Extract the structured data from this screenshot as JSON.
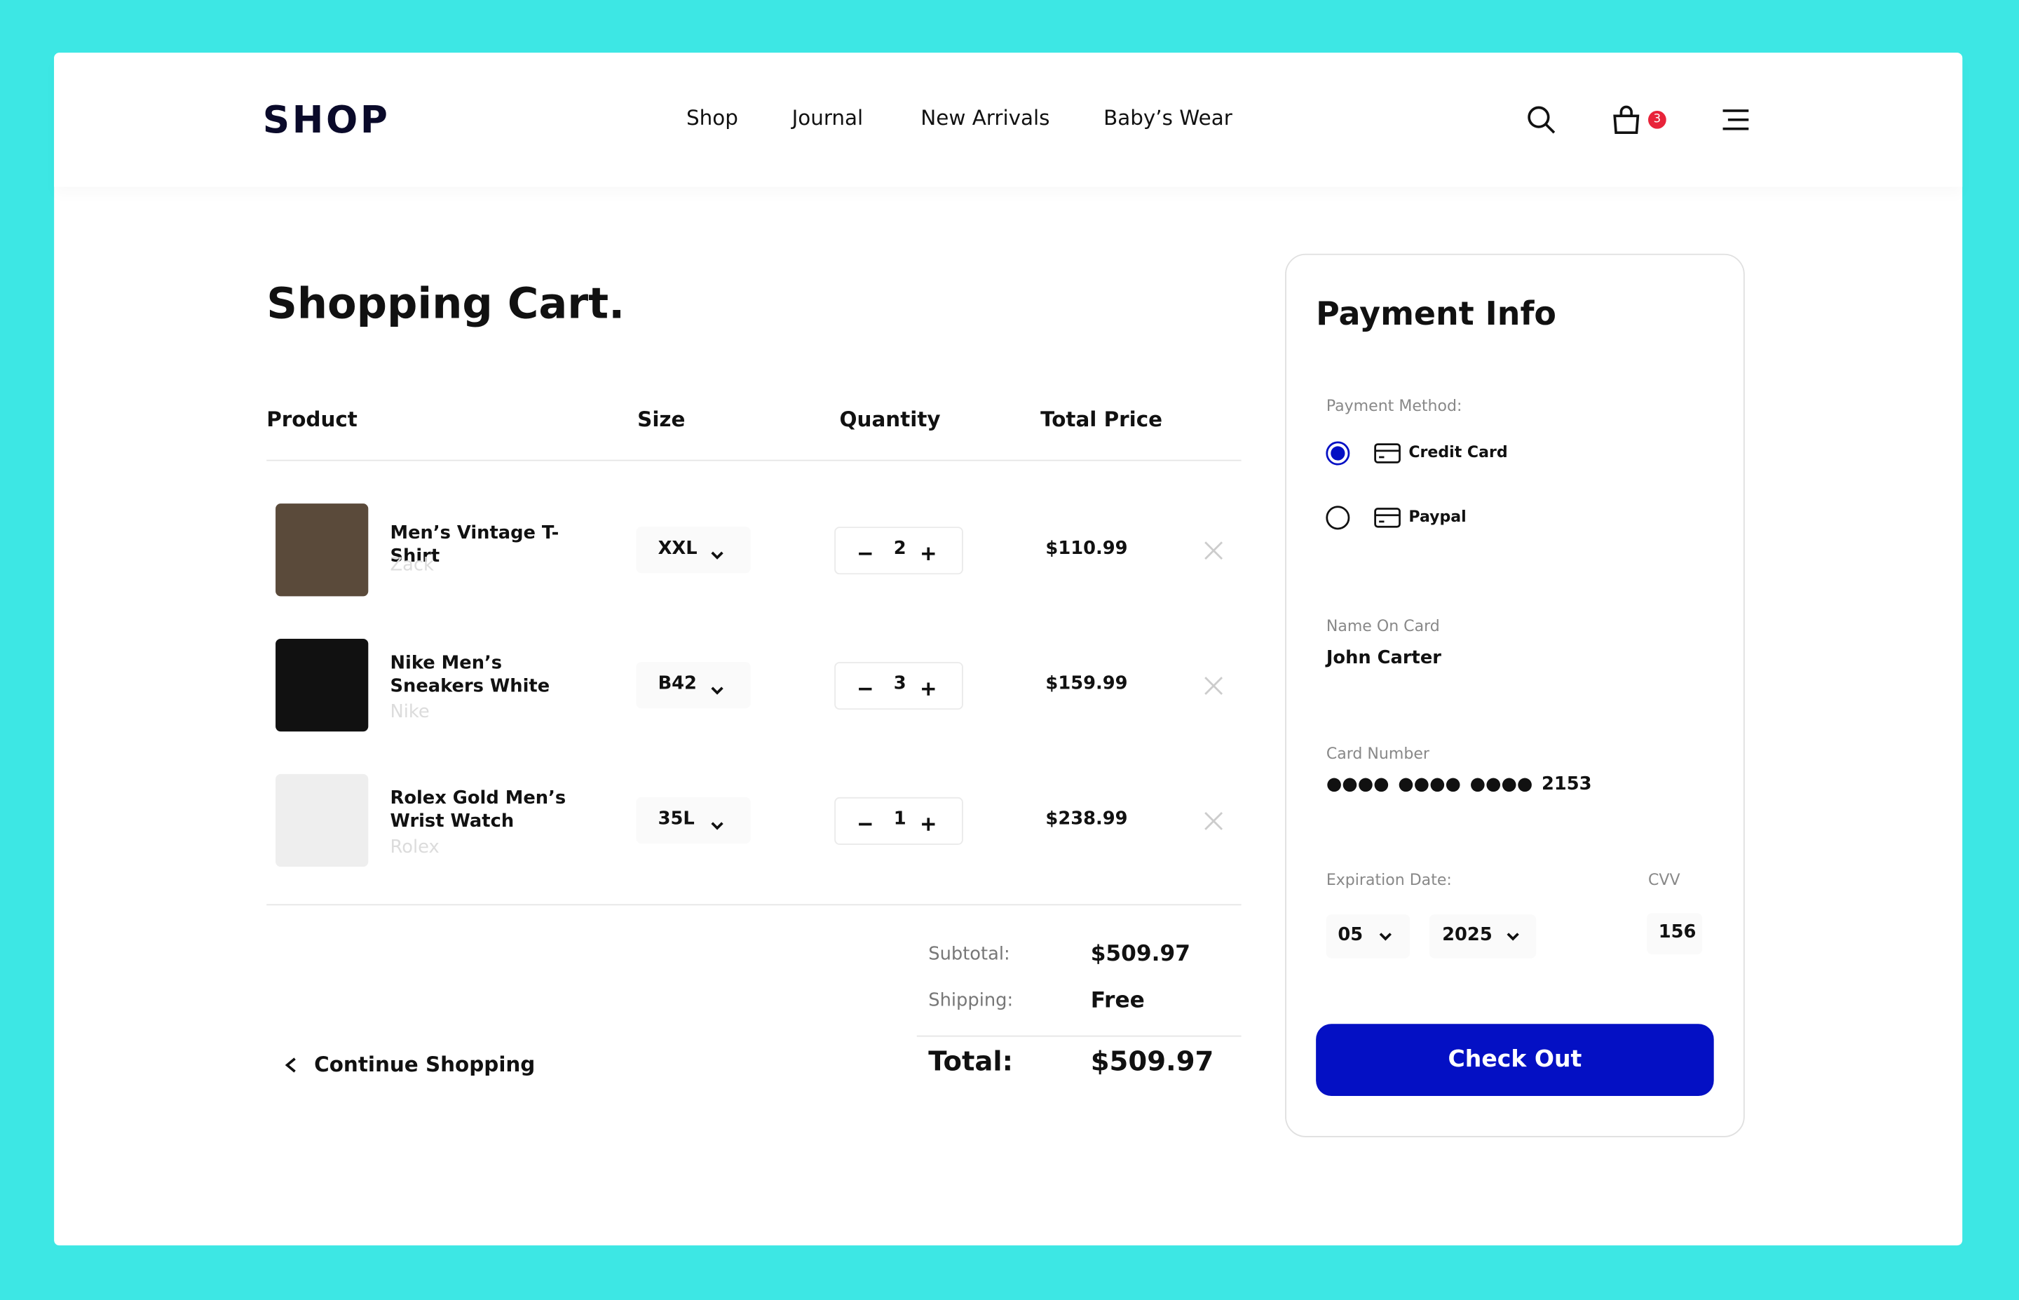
{
  "header": {
    "logo": "SHOP",
    "nav": [
      "Shop",
      "Journal",
      "New Arrivals",
      "Baby’s Wear"
    ],
    "cart_count": 3
  },
  "cart": {
    "title": "Shopping Cart.",
    "columns": [
      "Product",
      "Size",
      "Quantity",
      "Total Price"
    ],
    "items": [
      {
        "name": "Men’s Vintage T-Shirt",
        "brand": "Zack",
        "size": "XXL",
        "quantity": 2,
        "price": "$110.99"
      },
      {
        "name": "Nike Men’s  Sneakers White",
        "brand": "Nike",
        "size": "B42",
        "quantity": 3,
        "price": "$159.99"
      },
      {
        "name": "Rolex Gold Men’s Wrist Watch",
        "brand": "Rolex",
        "size": "35L",
        "quantity": 1,
        "price": "$238.99"
      }
    ]
  },
  "summary": {
    "subtotal_label": "Subtotal:",
    "subtotal": "$509.97",
    "shipping_label": "Shipping:",
    "shipping": "Free",
    "total_label": "Total:",
    "total": "$509.97"
  },
  "continue_shopping": "Continue Shopping",
  "payment": {
    "title": "Payment Info",
    "method_label": "Payment Method:",
    "methods": [
      "Credit Card",
      "Paypal"
    ],
    "name_label": "Name On Card",
    "name": "John Carter",
    "card_label": "Card Number",
    "card_number": "●●●● ●●●● ●●●● 2153",
    "expiration_label": "Expiration Date:",
    "cvv_label": "CVV",
    "month": "05",
    "year": "2025",
    "cvv": 156,
    "checkout": "Check Out"
  }
}
